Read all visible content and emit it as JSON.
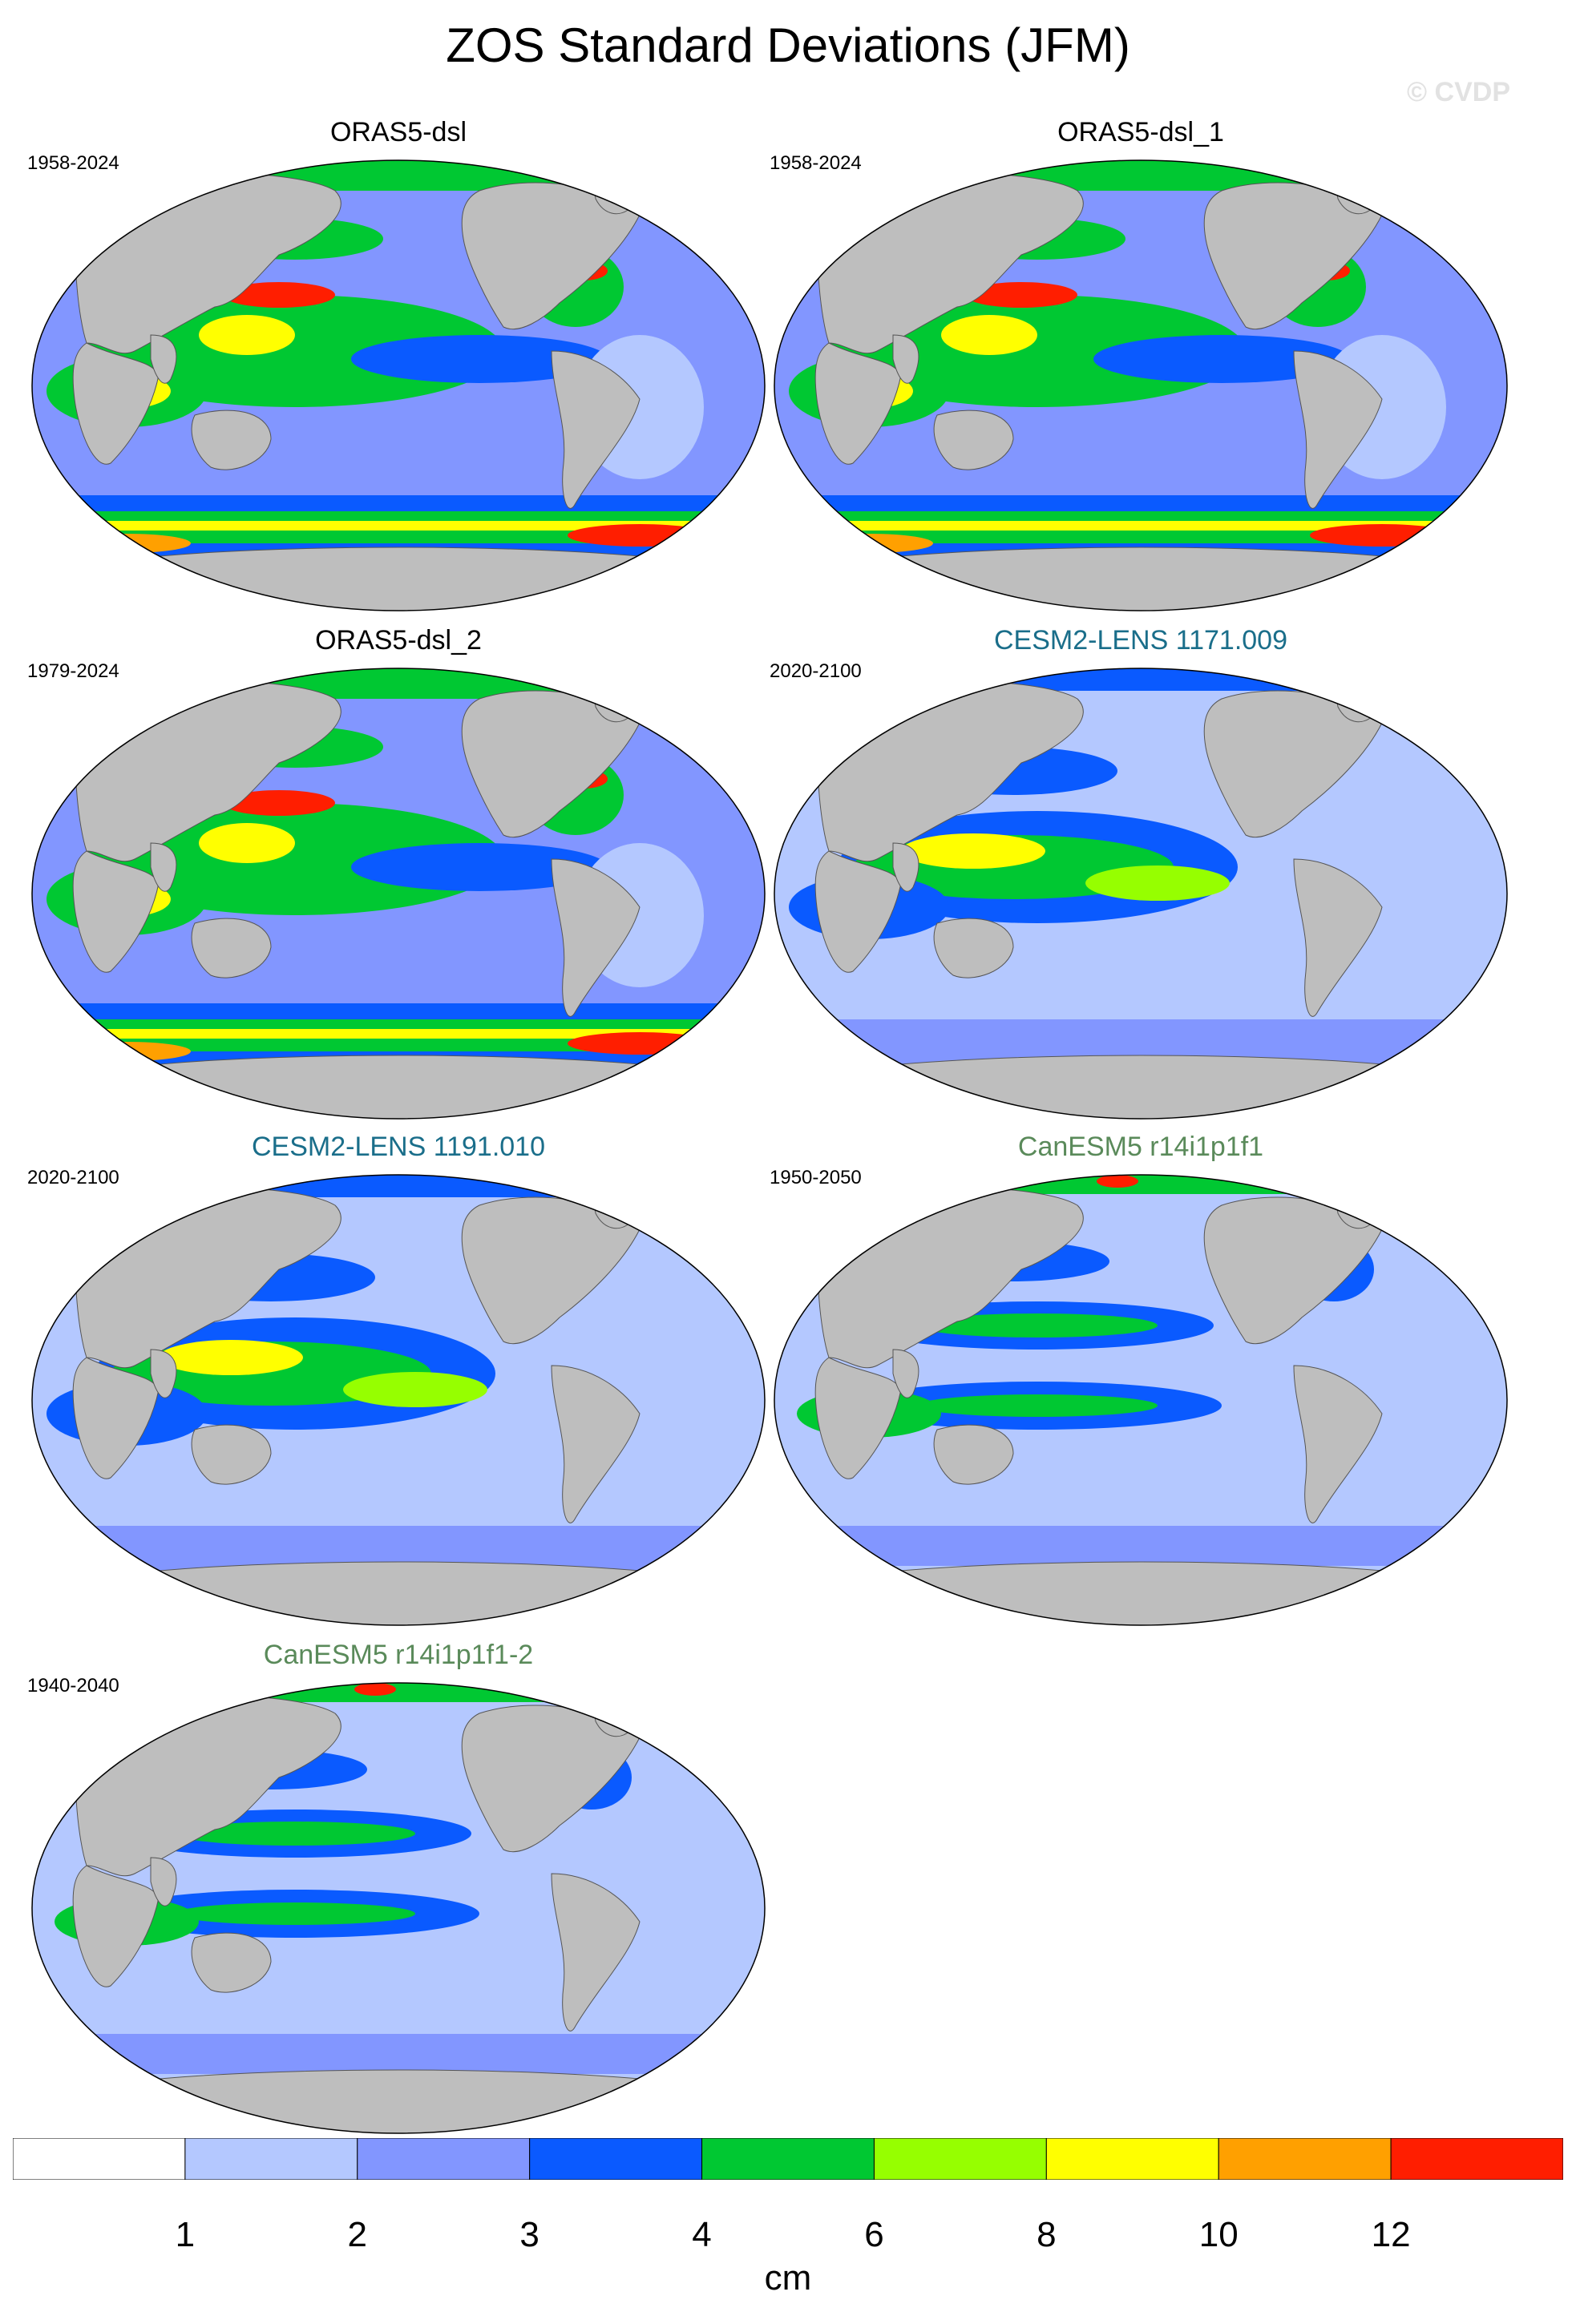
{
  "title": "ZOS Standard Deviations (JFM)",
  "watermark": "© CVDP",
  "panels": [
    {
      "title": "ORAS5-dsl",
      "years": "1958-2024",
      "title_color": "#000000",
      "pattern": "obs"
    },
    {
      "title": "ORAS5-dsl_1",
      "years": "1958-2024",
      "title_color": "#000000",
      "pattern": "obs"
    },
    {
      "title": "ORAS5-dsl_2",
      "years": "1979-2024",
      "title_color": "#000000",
      "pattern": "obs"
    },
    {
      "title": "CESM2-LENS 1171.009",
      "years": "2020-2100",
      "title_color": "#1a6e8a",
      "pattern": "cesm"
    },
    {
      "title": "CESM2-LENS 1191.010",
      "years": "2020-2100",
      "title_color": "#1a6e8a",
      "pattern": "cesm"
    },
    {
      "title": "CanESM5 r14i1p1f1",
      "years": "1950-2050",
      "title_color": "#5a8a5a",
      "pattern": "can"
    },
    {
      "title": "CanESM5 r14i1p1f1-2",
      "years": "1940-2040",
      "title_color": "#5a8a5a",
      "pattern": "can"
    }
  ],
  "colorbar": {
    "colors": [
      "#ffffff",
      "#b4c8ff",
      "#8296ff",
      "#0a5aff",
      "#00c832",
      "#96ff00",
      "#ffff00",
      "#ffa000",
      "#ff1e00"
    ],
    "tick_labels": [
      "1",
      "2",
      "3",
      "4",
      "6",
      "8",
      "10",
      "12"
    ],
    "units": "cm"
  },
  "land_color": "#bebebe"
}
